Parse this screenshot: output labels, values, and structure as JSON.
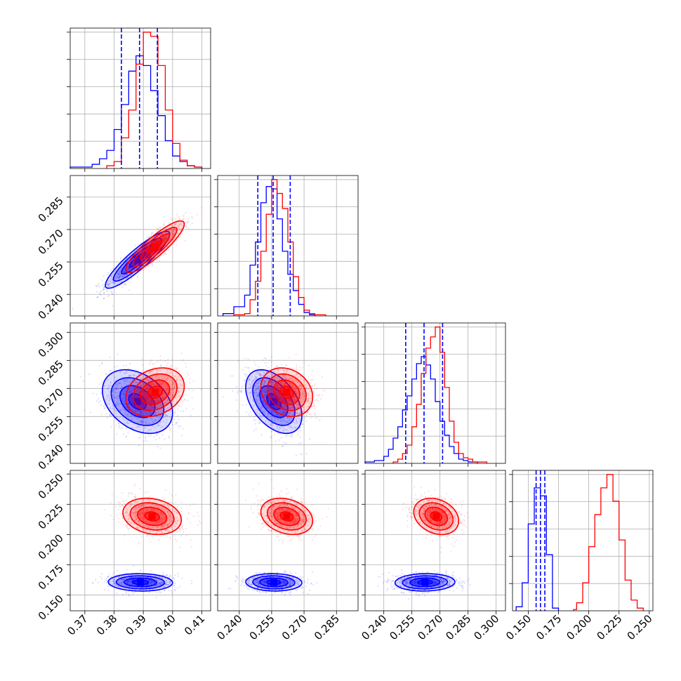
{
  "chart_data": {
    "type": "corner",
    "title": "",
    "colors": {
      "series_a": "#0000ff",
      "series_b": "#ff0000",
      "quantile_lines": "#0000ff"
    },
    "grid": true,
    "parameters": [
      {
        "range": [
          0.365,
          0.413
        ],
        "ticks": [
          0.37,
          0.38,
          0.39,
          0.4,
          0.41
        ],
        "tick_labels": [
          "0.37",
          "0.38",
          "0.39",
          "0.40",
          "0.41"
        ]
      },
      {
        "range": [
          0.23,
          0.295
        ],
        "ticks": [
          0.24,
          0.255,
          0.27,
          0.285
        ],
        "tick_labels": [
          "0.240",
          "0.255",
          "0.270",
          "0.285"
        ]
      },
      {
        "range": [
          0.23,
          0.305
        ],
        "ticks": [
          0.24,
          0.255,
          0.27,
          0.285,
          0.3
        ],
        "tick_labels": [
          "0.240",
          "0.255",
          "0.270",
          "0.285",
          "0.300"
        ]
      },
      {
        "range": [
          0.137,
          0.253
        ],
        "ticks": [
          0.15,
          0.175,
          0.2,
          0.225,
          0.25
        ],
        "tick_labels": [
          "0.150",
          "0.175",
          "0.200",
          "0.225",
          "0.250"
        ]
      }
    ],
    "histograms": [
      {
        "quantiles": [
          0.3825,
          0.3887,
          0.3948
        ],
        "series": [
          {
            "color": "#0000ff",
            "edges": [
              0.365,
              0.3725,
              0.375,
              0.3775,
              0.38,
              0.3825,
              0.385,
              0.3875,
              0.39,
              0.3925,
              0.395,
              0.3975,
              0.4,
              0.4025,
              0.405,
              0.4075,
              0.41
            ],
            "counts": [
              0.01,
              0.03,
              0.07,
              0.13,
              0.28,
              0.46,
              0.7,
              0.81,
              0.74,
              0.56,
              0.38,
              0.2,
              0.09,
              0.05,
              0.02,
              0.01
            ]
          },
          {
            "color": "#ff0000",
            "edges": [
              0.3775,
              0.38,
              0.3825,
              0.385,
              0.3875,
              0.39,
              0.3925,
              0.395,
              0.3975,
              0.4,
              0.4025,
              0.405,
              0.4075,
              0.41
            ],
            "counts": [
              0.02,
              0.05,
              0.22,
              0.42,
              0.75,
              0.98,
              0.95,
              0.74,
              0.42,
              0.18,
              0.06,
              0.02,
              0.01
            ]
          }
        ]
      },
      {
        "quantiles": [
          0.2486,
          0.2557,
          0.2636
        ],
        "series": [
          {
            "color": "#0000ff",
            "edges": [
              0.2325,
              0.2375,
              0.2425,
              0.245,
              0.2475,
              0.25,
              0.2525,
              0.255,
              0.2575,
              0.26,
              0.2625,
              0.265,
              0.2675,
              0.27,
              0.2725,
              0.275
            ],
            "counts": [
              0.02,
              0.08,
              0.18,
              0.44,
              0.64,
              0.98,
              1.12,
              1.1,
              0.84,
              0.56,
              0.36,
              0.22,
              0.1,
              0.03,
              0.01
            ]
          },
          {
            "color": "#ff0000",
            "edges": [
              0.2375,
              0.2425,
              0.245,
              0.2475,
              0.25,
              0.2525,
              0.255,
              0.2575,
              0.26,
              0.2625,
              0.265,
              0.2675,
              0.27,
              0.2725,
              0.275,
              0.2775,
              0.28
            ],
            "counts": [
              0.01,
              0.02,
              0.14,
              0.3,
              0.56,
              0.88,
              1.18,
              1.06,
              0.93,
              0.64,
              0.34,
              0.16,
              0.05,
              0.02,
              0.01,
              0.01
            ]
          }
        ]
      },
      {
        "quantiles": [
          0.2517,
          0.2615,
          0.2714
        ],
        "series": [
          {
            "color": "#0000ff",
            "edges": [
              0.23,
              0.235,
              0.24,
              0.2425,
              0.245,
              0.2475,
              0.25,
              0.2525,
              0.255,
              0.2575,
              0.26,
              0.2625,
              0.265,
              0.2675,
              0.27,
              0.2725,
              0.275,
              0.2775,
              0.28,
              0.2825,
              0.285,
              0.29
            ],
            "counts": [
              0.01,
              0.02,
              0.05,
              0.1,
              0.18,
              0.26,
              0.38,
              0.48,
              0.6,
              0.71,
              0.76,
              0.7,
              0.6,
              0.44,
              0.3,
              0.2,
              0.12,
              0.07,
              0.03,
              0.02,
              0.01
            ]
          },
          {
            "color": "#ff0000",
            "edges": [
              0.245,
              0.2475,
              0.25,
              0.2525,
              0.255,
              0.2575,
              0.26,
              0.2625,
              0.265,
              0.2675,
              0.27,
              0.2725,
              0.275,
              0.2775,
              0.28,
              0.2825,
              0.285,
              0.2875,
              0.29,
              0.2925,
              0.295
            ],
            "counts": [
              0.01,
              0.03,
              0.07,
              0.13,
              0.26,
              0.42,
              0.64,
              0.82,
              0.9,
              0.97,
              0.79,
              0.54,
              0.3,
              0.15,
              0.07,
              0.04,
              0.03,
              0.01,
              0.01,
              0.01
            ]
          }
        ]
      },
      {
        "quantiles": [
          0.1565,
          0.1601,
          0.1637
        ],
        "series": [
          {
            "color": "#0000ff",
            "edges": [
              0.14,
              0.145,
              0.15,
              0.155,
              0.16,
              0.165,
              0.17,
              0.175
            ],
            "counts": [
              0.03,
              0.21,
              0.65,
              0.92,
              0.86,
              0.42,
              0.02
            ]
          },
          {
            "color": "#ff0000",
            "edges": [
              0.1875,
              0.19,
              0.195,
              0.2,
              0.205,
              0.21,
              0.215,
              0.22,
              0.225,
              0.23,
              0.235,
              0.24,
              0.245
            ],
            "counts": [
              0.01,
              0.06,
              0.21,
              0.48,
              0.72,
              0.92,
              1.02,
              0.82,
              0.53,
              0.23,
              0.08,
              0.02
            ]
          }
        ]
      }
    ],
    "scatter_panels": [
      {
        "x_param": 0,
        "y_param": 1,
        "series": [
          {
            "color": "#0000ff",
            "center": [
              0.388,
              0.256
            ],
            "sd": [
              0.0055,
              0.0066
            ],
            "corr": 0.9
          },
          {
            "color": "#ff0000",
            "center": [
              0.394,
              0.262
            ],
            "sd": [
              0.005,
              0.006
            ],
            "corr": 0.88
          }
        ]
      },
      {
        "x_param": 0,
        "y_param": 2,
        "series": [
          {
            "color": "#0000ff",
            "center": [
              0.388,
              0.263
            ],
            "sd": [
              0.006,
              0.0085
            ],
            "corr": -0.35
          },
          {
            "color": "#ff0000",
            "center": [
              0.394,
              0.268
            ],
            "sd": [
              0.005,
              0.0065
            ],
            "corr": 0.25
          }
        ]
      },
      {
        "x_param": 1,
        "y_param": 2,
        "series": [
          {
            "color": "#0000ff",
            "center": [
              0.256,
              0.263
            ],
            "sd": [
              0.0065,
              0.0085
            ],
            "corr": -0.45
          },
          {
            "color": "#ff0000",
            "center": [
              0.262,
              0.268
            ],
            "sd": [
              0.006,
              0.0065
            ],
            "corr": -0.2
          }
        ]
      },
      {
        "x_param": 0,
        "y_param": 3,
        "series": [
          {
            "color": "#0000ff",
            "center": [
              0.389,
              0.1605
            ],
            "sd": [
              0.0055,
              0.0036
            ],
            "corr": -0.05
          },
          {
            "color": "#ff0000",
            "center": [
              0.393,
              0.215
            ],
            "sd": [
              0.005,
              0.0075
            ],
            "corr": -0.2
          }
        ]
      },
      {
        "x_param": 1,
        "y_param": 3,
        "series": [
          {
            "color": "#0000ff",
            "center": [
              0.256,
              0.1605
            ],
            "sd": [
              0.0065,
              0.0036
            ],
            "corr": -0.05
          },
          {
            "color": "#ff0000",
            "center": [
              0.262,
              0.215
            ],
            "sd": [
              0.006,
              0.0075
            ],
            "corr": -0.25
          }
        ]
      },
      {
        "x_param": 2,
        "y_param": 3,
        "series": [
          {
            "color": "#0000ff",
            "center": [
              0.262,
              0.1605
            ],
            "sd": [
              0.008,
              0.0036
            ],
            "corr": 0.05
          },
          {
            "color": "#ff0000",
            "center": [
              0.268,
              0.215
            ],
            "sd": [
              0.006,
              0.0075
            ],
            "corr": -0.25
          }
        ]
      }
    ],
    "contour_levels_sigma": [
      0.5,
      1.0,
      1.5,
      2.0
    ]
  }
}
